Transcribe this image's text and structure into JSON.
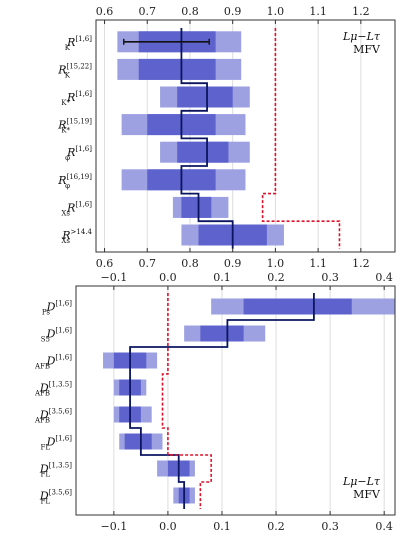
{
  "chart_data": [
    {
      "type": "bar",
      "panel": "top",
      "model_label": [
        "Lμ−Lτ",
        "MFV"
      ],
      "xlim": [
        0.58,
        1.28
      ],
      "xticks": [
        0.6,
        0.7,
        0.8,
        0.9,
        1.0,
        1.1,
        1.2
      ],
      "xtick_labels": [
        "0.6",
        "0.7",
        "0.8",
        "0.9",
        "1.0",
        "1.1",
        "1.2"
      ],
      "categories": [
        {
          "base": "R",
          "sub": "K",
          "sup": "[1,6]"
        },
        {
          "base": "R",
          "sub": "K",
          "sup": "[15,22]"
        },
        {
          "base": "R",
          "sub": "K*",
          "sup": "[1,6]"
        },
        {
          "base": "R",
          "sub": "K*",
          "sup": "[15,19]"
        },
        {
          "base": "R",
          "sub": "φ",
          "sup": "[1,6]"
        },
        {
          "base": "R",
          "sub": "φ",
          "sup": "[16,19]"
        },
        {
          "base": "R",
          "sub": "Xs",
          "sup": "[1,6]"
        },
        {
          "base": "R",
          "sub": "Xs",
          "sup": ">14.4"
        }
      ],
      "outer_band": [
        [
          0.63,
          0.92
        ],
        [
          0.63,
          0.92
        ],
        [
          0.73,
          0.94
        ],
        [
          0.64,
          0.93
        ],
        [
          0.73,
          0.94
        ],
        [
          0.64,
          0.93
        ],
        [
          0.76,
          0.89
        ],
        [
          0.78,
          1.02
        ]
      ],
      "inner_band": [
        [
          0.68,
          0.86
        ],
        [
          0.68,
          0.86
        ],
        [
          0.77,
          0.9
        ],
        [
          0.7,
          0.86
        ],
        [
          0.77,
          0.89
        ],
        [
          0.7,
          0.86
        ],
        [
          0.78,
          0.85
        ],
        [
          0.82,
          0.98
        ]
      ],
      "central": [
        0.78,
        0.78,
        0.84,
        0.78,
        0.84,
        0.78,
        0.82,
        0.9
      ],
      "sm_dashed": [
        1.0,
        1.0,
        1.0,
        1.0,
        1.0,
        1.0,
        0.97,
        1.15
      ],
      "measurement": {
        "category": 0,
        "value": 0.745,
        "range": [
          0.645,
          0.845
        ]
      }
    },
    {
      "type": "bar",
      "panel": "bottom",
      "model_label": [
        "Lμ−Lτ",
        "MFV"
      ],
      "xlim": [
        -0.17,
        0.42
      ],
      "xticks": [
        -0.1,
        0.0,
        0.1,
        0.2,
        0.3,
        0.4
      ],
      "xtick_labels": [
        "−0.1",
        "0.0",
        "0.1",
        "0.2",
        "0.3",
        "0.4"
      ],
      "categories": [
        {
          "base": "D",
          "sub": "Ps",
          "sup": "[1,6]"
        },
        {
          "base": "D",
          "sub": "S5",
          "sup": "[1,6]"
        },
        {
          "base": "D",
          "sub": "AFB",
          "sup": "[1,6]"
        },
        {
          "base": "D",
          "sub": "AFB",
          "sup": "[1,3.5]"
        },
        {
          "base": "D",
          "sub": "AFB",
          "sup": "[3.5,6]"
        },
        {
          "base": "D",
          "sub": "FL",
          "sup": "[1,6]"
        },
        {
          "base": "D",
          "sub": "FL",
          "sup": "[1,3.5]"
        },
        {
          "base": "D",
          "sub": "FL",
          "sup": "[3.5,6]"
        }
      ],
      "outer_band": [
        [
          0.08,
          0.42
        ],
        [
          0.03,
          0.18
        ],
        [
          -0.12,
          -0.02
        ],
        [
          -0.1,
          -0.04
        ],
        [
          -0.1,
          -0.03
        ],
        [
          -0.09,
          -0.01
        ],
        [
          -0.02,
          0.05
        ],
        [
          0.01,
          0.05
        ]
      ],
      "inner_band": [
        [
          0.14,
          0.34
        ],
        [
          0.06,
          0.14
        ],
        [
          -0.1,
          -0.04
        ],
        [
          -0.09,
          -0.05
        ],
        [
          -0.09,
          -0.05
        ],
        [
          -0.08,
          -0.03
        ],
        [
          0.0,
          0.04
        ],
        [
          0.02,
          0.04
        ]
      ],
      "central": [
        0.27,
        0.11,
        -0.07,
        -0.07,
        -0.07,
        -0.05,
        0.02,
        0.03
      ],
      "sm_dashed": [
        0.0,
        0.0,
        0.0,
        -0.01,
        -0.01,
        0.0,
        0.08,
        0.06
      ]
    }
  ],
  "colors": {
    "outer": "#9da1e1",
    "inner": "#5d62cc",
    "central": "#0b1560",
    "sm": "#e0102a",
    "measurement": "#111111",
    "grid": "#dddddd",
    "frame": "#333333"
  }
}
